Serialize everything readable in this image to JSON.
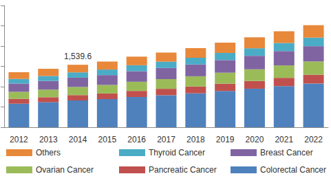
{
  "chart_data": {
    "type": "bar",
    "stacked": true,
    "categories": [
      "2012",
      "2013",
      "2014",
      "2015",
      "2016",
      "2017",
      "2018",
      "2019",
      "2020",
      "2021",
      "2022"
    ],
    "series": [
      {
        "name": "Others",
        "color": "#e8883a",
        "values": [
          166,
          176,
          187.6,
          197,
          212,
          224,
          238,
          254,
          270,
          288,
          306
        ]
      },
      {
        "name": "Thyroid Cancer",
        "color": "#4bacc6",
        "values": [
          115,
          122,
          130,
          137,
          147,
          155,
          165,
          176,
          187,
          200,
          212
        ]
      },
      {
        "name": "Breast Cancer",
        "color": "#8064a2",
        "values": [
          203,
          215,
          230,
          242,
          260,
          275,
          291,
          311,
          331,
          353,
          376
        ]
      },
      {
        "name": "Ovarian Cancer",
        "color": "#9bbb59",
        "values": [
          176,
          187,
          200,
          210,
          226,
          239,
          253,
          271,
          288,
          307,
          327
        ]
      },
      {
        "name": "Pancreatic Cancer",
        "color": "#c0504d",
        "values": [
          116,
          123,
          132,
          139,
          149,
          158,
          167,
          179,
          190,
          203,
          216
        ]
      },
      {
        "name": "Colorectal Cancer",
        "color": "#4f81bd",
        "values": [
          582,
          617,
          660,
          694,
          746,
          789,
          836,
          894,
          950,
          1014,
          1078
        ]
      }
    ],
    "annotations": [
      {
        "x": "2014",
        "y": 1539.6,
        "text": "1,539.6"
      }
    ],
    "ylim": [
      0,
      3000
    ],
    "yticks": [
      0,
      500,
      1000,
      1500,
      2000,
      2500,
      3000
    ],
    "grid": false,
    "tick_labels": "x",
    "legend": "bottom"
  }
}
